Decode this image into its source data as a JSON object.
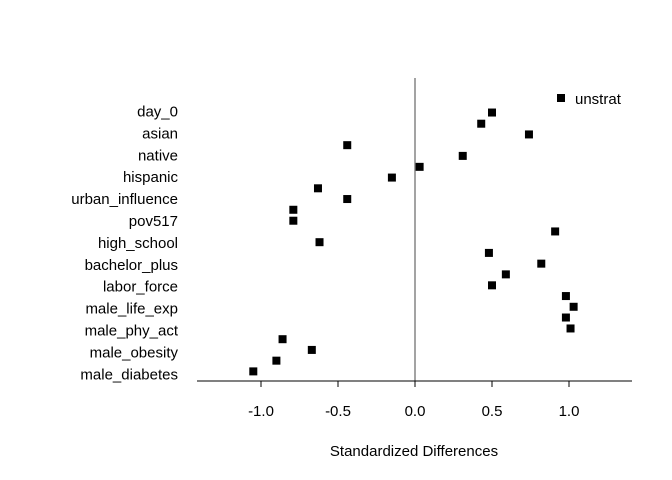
{
  "chart_data": {
    "type": "scatter",
    "title": "",
    "xlabel": "Standardized Differences",
    "ylabel": "",
    "xlim": [
      -1.4,
      1.4
    ],
    "x_ticks": [
      -1.0,
      -0.5,
      0.0,
      0.5,
      1.0
    ],
    "x_tick_labels": [
      "-1.0",
      "-0.5",
      "0.0",
      "0.5",
      "1.0"
    ],
    "reference_line_x": 0,
    "grid": false,
    "legend_position": "top-right",
    "categories": [
      "day_0",
      "asian",
      "native",
      "hispanic",
      "urban_influence",
      "pov517",
      "high_school",
      "bachelor_plus",
      "labor_force",
      "male_life_exp",
      "male_phy_act",
      "male_obesity",
      "male_diabetes"
    ],
    "series": [
      {
        "name": "unstrat",
        "marker": "square",
        "color": "#000000",
        "points": [
          {
            "x": 0.43,
            "y": 0.58
          },
          {
            "x": 0.5,
            "y": 0.07
          },
          {
            "x": 0.74,
            "y": 1.07
          },
          {
            "x": -0.44,
            "y": 1.56
          },
          {
            "x": 0.31,
            "y": 2.05
          },
          {
            "x": 0.03,
            "y": 2.55
          },
          {
            "x": -0.15,
            "y": 3.04
          },
          {
            "x": -0.63,
            "y": 3.53
          },
          {
            "x": -0.44,
            "y": 4.02
          },
          {
            "x": -0.79,
            "y": 4.51
          },
          {
            "x": -0.79,
            "y": 5.01
          },
          {
            "x": 0.91,
            "y": 5.5
          },
          {
            "x": -0.62,
            "y": 5.99
          },
          {
            "x": 0.48,
            "y": 6.48
          },
          {
            "x": 0.82,
            "y": 6.97
          },
          {
            "x": 0.59,
            "y": 7.46
          },
          {
            "x": 0.5,
            "y": 7.96
          },
          {
            "x": 0.98,
            "y": 8.45
          },
          {
            "x": 1.03,
            "y": 8.94
          },
          {
            "x": 0.98,
            "y": 9.43
          },
          {
            "x": 1.01,
            "y": 9.93
          },
          {
            "x": -0.86,
            "y": 10.42
          },
          {
            "x": -0.67,
            "y": 10.91
          },
          {
            "x": -0.9,
            "y": 11.4
          },
          {
            "x": -1.05,
            "y": 11.89
          }
        ]
      }
    ]
  }
}
